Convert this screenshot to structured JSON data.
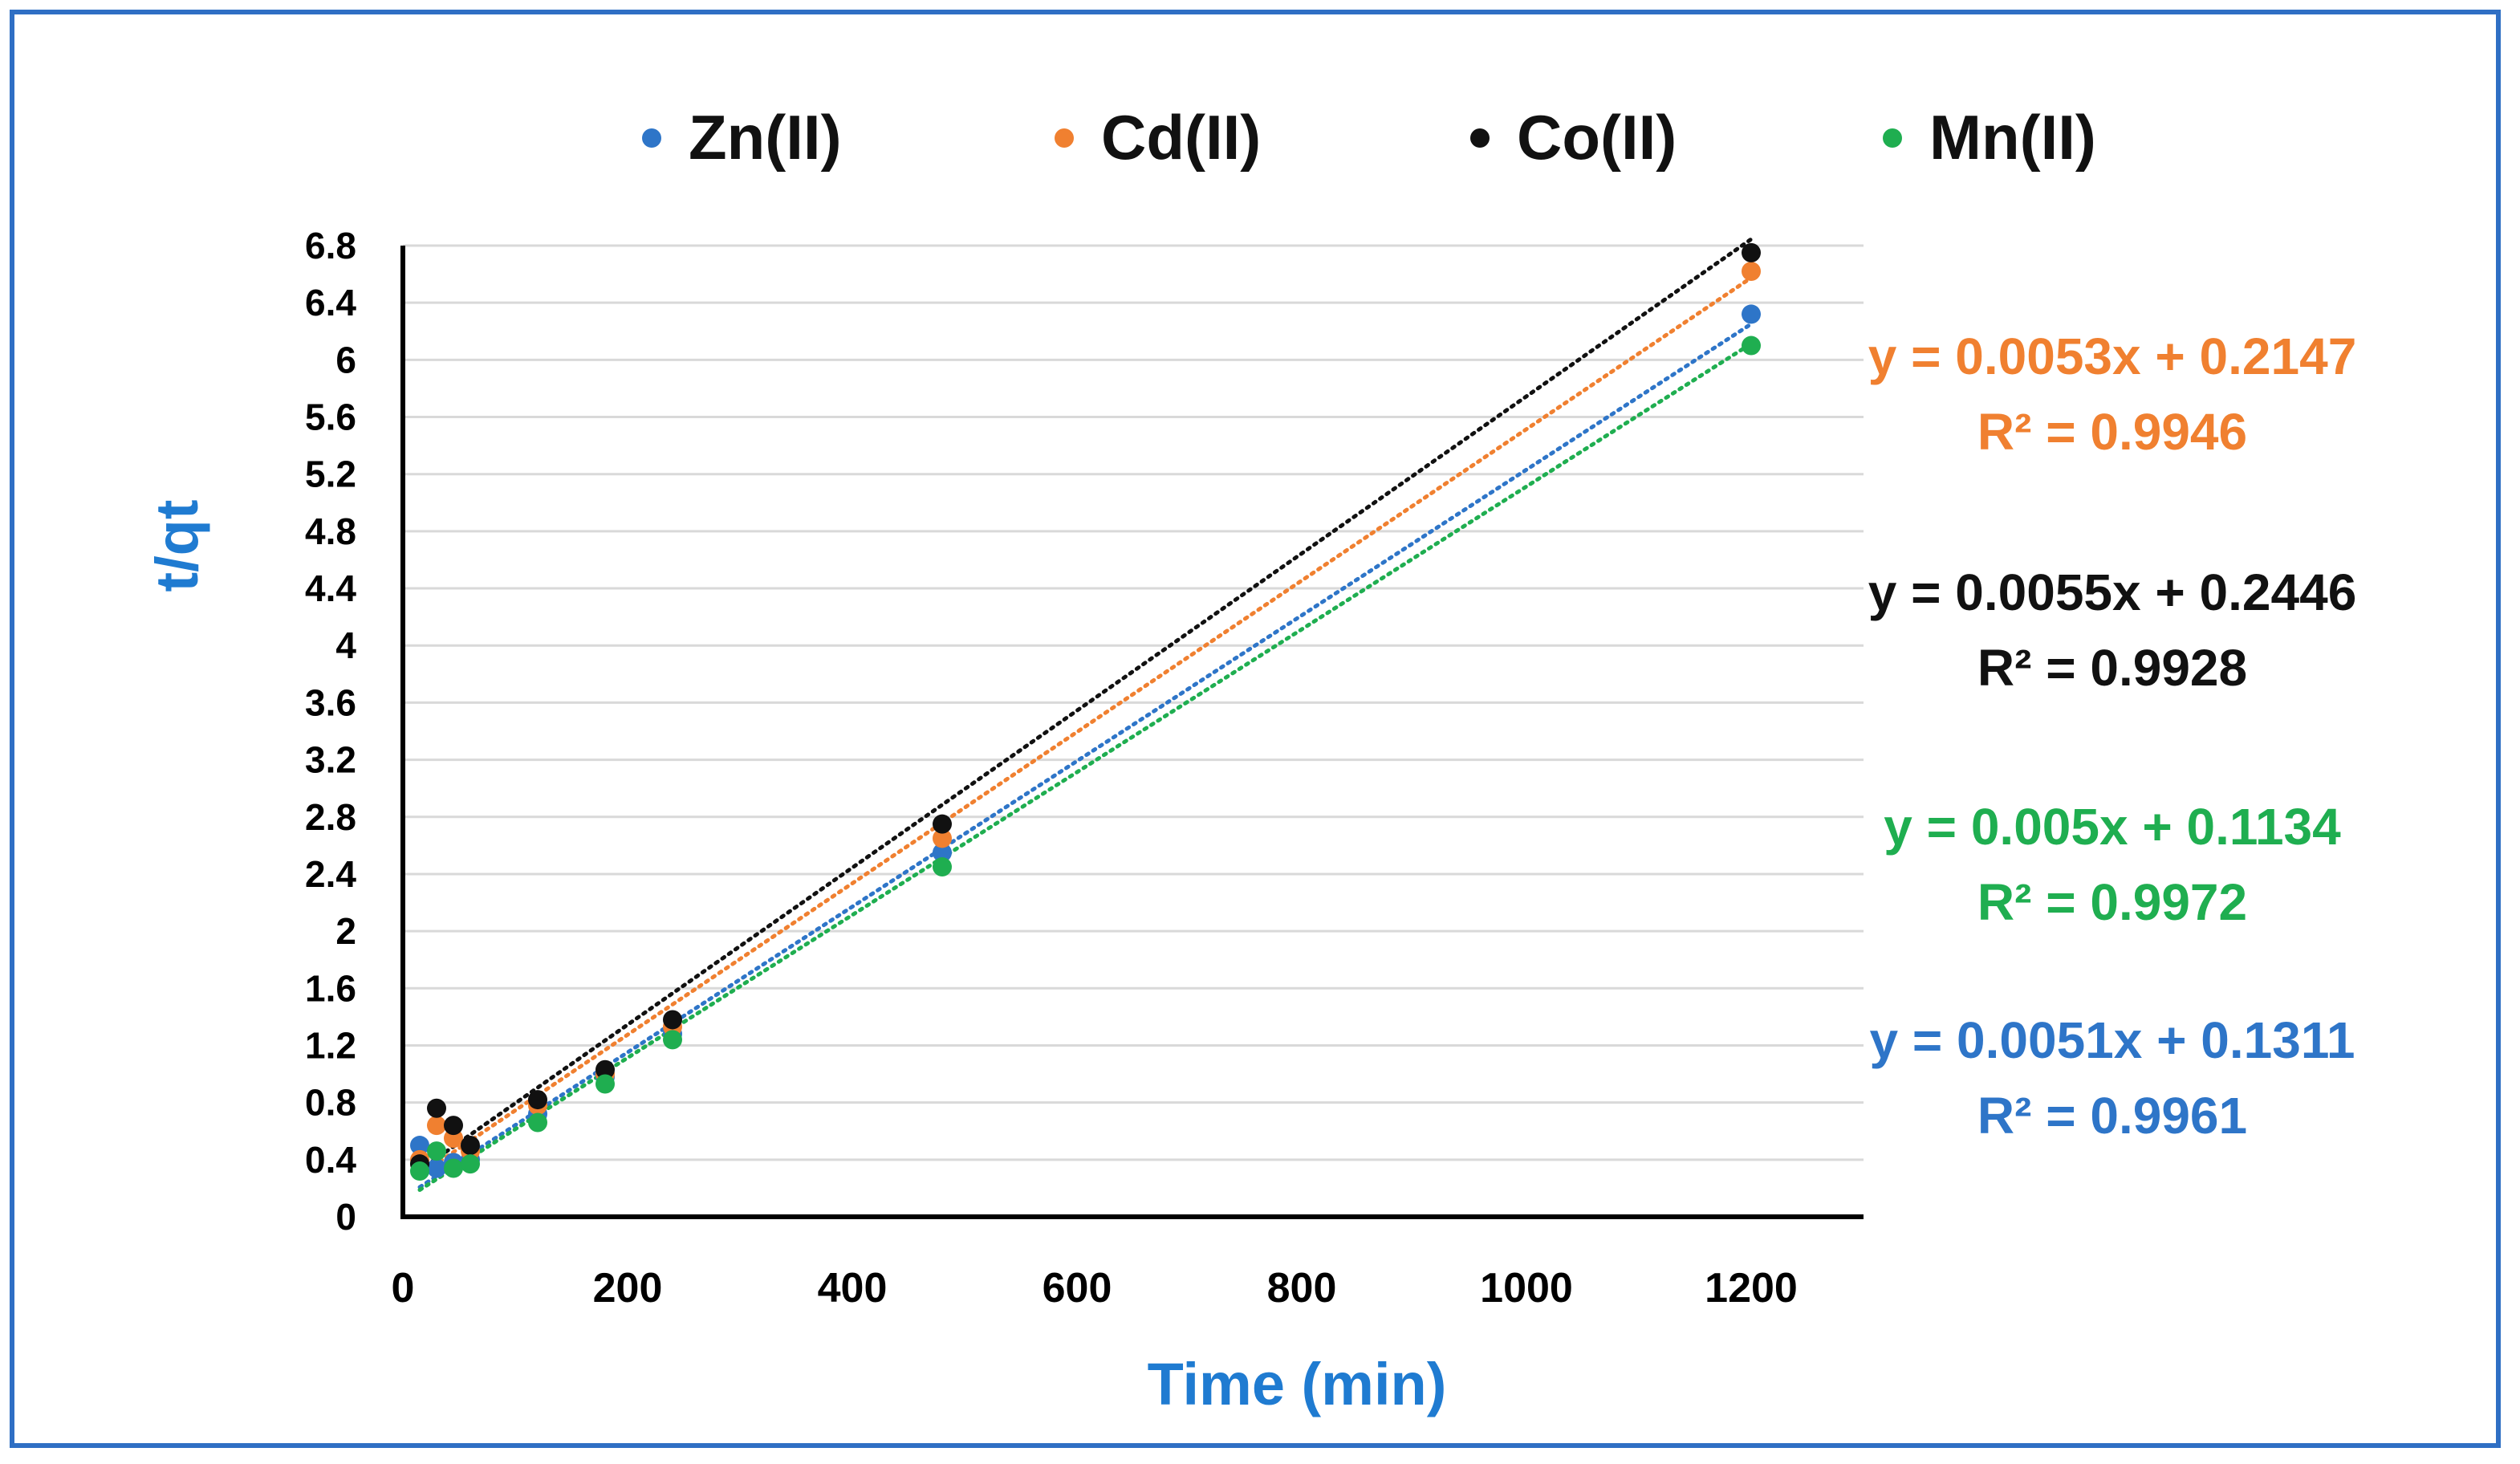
{
  "chart_data": {
    "type": "scatter",
    "title": "",
    "xlabel": "Time (min)",
    "ylabel": "t/qt",
    "xlim": [
      0,
      1300
    ],
    "ylim": [
      0,
      6.8
    ],
    "xticks": [
      0,
      200,
      400,
      600,
      800,
      1000,
      1200
    ],
    "yticks": [
      0,
      0.4,
      0.8,
      1.2,
      1.6,
      2,
      2.4,
      2.8,
      3.2,
      3.6,
      4,
      4.4,
      4.8,
      5.2,
      5.6,
      6,
      6.4,
      6.8
    ],
    "grid": "horizontal",
    "legend_position": "top",
    "series": [
      {
        "name": "Zn(II)",
        "color": "#2e75c8",
        "x": [
          15,
          30,
          45,
          60,
          120,
          180,
          240,
          480,
          1200
        ],
        "y": [
          0.5,
          0.34,
          0.38,
          0.4,
          0.72,
          0.98,
          1.28,
          2.55,
          6.32
        ],
        "trendline": {
          "slope": 0.0051,
          "intercept": 0.1311
        },
        "equation": "y = 0.0051x + 0.1311",
        "r2": "R² = 0.9961"
      },
      {
        "name": "Cd(II)",
        "color": "#f08030",
        "x": [
          15,
          30,
          45,
          60,
          120,
          180,
          240,
          480,
          1200
        ],
        "y": [
          0.4,
          0.64,
          0.55,
          0.46,
          0.78,
          1.0,
          1.33,
          2.65,
          6.62
        ],
        "trendline": {
          "slope": 0.0053,
          "intercept": 0.2147
        },
        "equation": "y = 0.0053x + 0.2147",
        "r2": "R² = 0.9946"
      },
      {
        "name": "Co(II)",
        "color": "#111111",
        "x": [
          15,
          30,
          45,
          60,
          120,
          180,
          240,
          480,
          1200
        ],
        "y": [
          0.37,
          0.76,
          0.64,
          0.5,
          0.82,
          1.03,
          1.38,
          2.75,
          6.75
        ],
        "trendline": {
          "slope": 0.0055,
          "intercept": 0.2446
        },
        "equation": "y = 0.0055x + 0.2446",
        "r2": "R² = 0.9928"
      },
      {
        "name": "Mn(II)",
        "color": "#1fae50",
        "x": [
          15,
          30,
          45,
          60,
          120,
          180,
          240,
          480,
          1200
        ],
        "y": [
          0.32,
          0.46,
          0.34,
          0.37,
          0.66,
          0.93,
          1.24,
          2.45,
          6.1
        ],
        "trendline": {
          "slope": 0.005,
          "intercept": 0.1134
        },
        "equation": "y = 0.005x + 0.1134",
        "r2": "R² = 0.9972"
      }
    ]
  }
}
